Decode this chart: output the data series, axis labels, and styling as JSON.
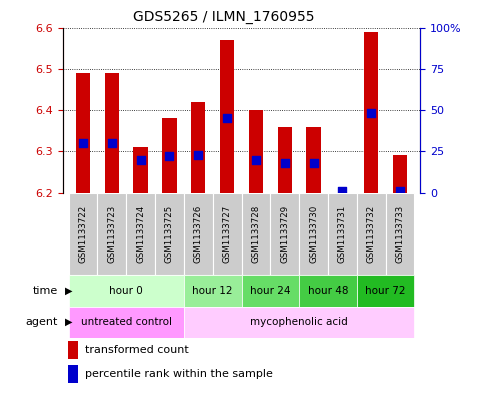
{
  "title": "GDS5265 / ILMN_1760955",
  "samples": [
    "GSM1133722",
    "GSM1133723",
    "GSM1133724",
    "GSM1133725",
    "GSM1133726",
    "GSM1133727",
    "GSM1133728",
    "GSM1133729",
    "GSM1133730",
    "GSM1133731",
    "GSM1133732",
    "GSM1133733"
  ],
  "transformed_count": [
    6.49,
    6.49,
    6.31,
    6.38,
    6.42,
    6.57,
    6.4,
    6.36,
    6.36,
    6.2,
    6.59,
    6.29
  ],
  "percentile_rank": [
    30,
    30,
    20,
    22,
    23,
    45,
    20,
    18,
    18,
    1,
    48,
    1
  ],
  "ylim_left": [
    6.2,
    6.6
  ],
  "ylim_right": [
    0,
    100
  ],
  "yticks_left": [
    6.2,
    6.3,
    6.4,
    6.5,
    6.6
  ],
  "yticks_right": [
    0,
    25,
    50,
    75,
    100
  ],
  "ytick_labels_right": [
    "0",
    "25",
    "50",
    "75",
    "100%"
  ],
  "bar_color": "#cc0000",
  "dot_color": "#0000cc",
  "bar_base": 6.2,
  "time_groups": [
    {
      "label": "hour 0",
      "start": 0,
      "end": 4,
      "color": "#ccffcc"
    },
    {
      "label": "hour 12",
      "start": 4,
      "end": 6,
      "color": "#99ee99"
    },
    {
      "label": "hour 24",
      "start": 6,
      "end": 8,
      "color": "#66dd66"
    },
    {
      "label": "hour 48",
      "start": 8,
      "end": 10,
      "color": "#44cc44"
    },
    {
      "label": "hour 72",
      "start": 10,
      "end": 12,
      "color": "#22bb22"
    }
  ],
  "agent_groups": [
    {
      "label": "untreated control",
      "start": 0,
      "end": 4,
      "color": "#ff99ff"
    },
    {
      "label": "mycophenolic acid",
      "start": 4,
      "end": 12,
      "color": "#ffccff"
    }
  ],
  "background_color": "#ffffff",
  "tick_color_left": "#cc0000",
  "tick_color_right": "#0000cc",
  "bar_width": 0.5,
  "dot_size": 30,
  "xlim_min": -0.7,
  "xlim_max": 11.7
}
